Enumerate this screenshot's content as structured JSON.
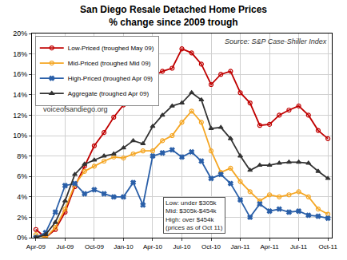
{
  "chart_data": {
    "type": "line",
    "title": "San Diego Resale Detached Home Prices",
    "subtitle": "% change since 2009 trough",
    "categories": [
      "Apr-09",
      null,
      null,
      "Jul-09",
      null,
      null,
      "Oct-09",
      null,
      null,
      "Jan-10",
      null,
      null,
      "Apr-10",
      null,
      null,
      "Jul-10",
      null,
      null,
      "Oct-10",
      null,
      null,
      "Jan-11",
      null,
      null,
      "Apr-11",
      null,
      null,
      "Jul-11",
      null,
      null,
      "Oct-11"
    ],
    "series": [
      {
        "name": "Low-Priced (troughed May 09)",
        "color": "#c00000",
        "marker": "circle-open",
        "values": [
          0.8,
          0,
          0.8,
          2.5,
          5.0,
          7.0,
          9.0,
          10.3,
          11.8,
          13.0,
          14.6,
          14.3,
          15.8,
          16.3,
          16.6,
          18.5,
          18.1,
          17.0,
          15.0,
          16.0,
          16.3,
          14.2,
          13.2,
          11.0,
          11.1,
          12.0,
          12.5,
          12.9,
          12.0,
          10.5,
          9.7
        ]
      },
      {
        "name": "Mid-Priced (troughed Mid 09)",
        "color": "#f5a623",
        "marker": "circle-open",
        "values": [
          0.3,
          0,
          1.0,
          2.8,
          5.2,
          6.5,
          7.0,
          7.5,
          7.9,
          7.8,
          8.2,
          8.5,
          8.5,
          9.5,
          10.0,
          11.3,
          12.4,
          11.3,
          8.5,
          6.4,
          6.8,
          5.5,
          4.5,
          3.6,
          4.2,
          4.0,
          4.2,
          4.5,
          4.0,
          2.8,
          2.3
        ]
      },
      {
        "name": "High-Priced (troughed Apr 09)",
        "color": "#2a5fa8",
        "marker": "x",
        "values": [
          0,
          0.5,
          2.5,
          5.1,
          5.3,
          4.3,
          4.7,
          4.3,
          4.0,
          4.0,
          5.4,
          3.2,
          8.0,
          8.3,
          8.6,
          7.9,
          8.4,
          7.5,
          5.8,
          6.2,
          5.3,
          3.7,
          2.0,
          3.3,
          2.6,
          2.8,
          2.5,
          2.6,
          2.2,
          2.1,
          1.9
        ]
      },
      {
        "name": "Aggregate (troughed Apr 09)",
        "color": "#333333",
        "marker": "triangle-up",
        "values": [
          0,
          0.3,
          1.5,
          3.6,
          6.2,
          7.2,
          7.6,
          8.0,
          8.2,
          8.8,
          9.5,
          9.2,
          10.9,
          12.0,
          12.9,
          13.2,
          14.2,
          13.5,
          10.7,
          10.8,
          9.7,
          8.0,
          6.6,
          7.1,
          7.1,
          7.3,
          7.4,
          7.4,
          7.3,
          6.5,
          5.8
        ]
      }
    ],
    "ylim": [
      0,
      20
    ],
    "yticks": [
      {
        "value": 0,
        "label": "0%"
      },
      {
        "value": 2,
        "label": "2%"
      },
      {
        "value": 4,
        "label": "4%"
      },
      {
        "value": 6,
        "label": "6%"
      },
      {
        "value": 8,
        "label": "8%"
      },
      {
        "value": 10,
        "label": "10%"
      },
      {
        "value": 12,
        "label": "12%"
      },
      {
        "value": 14,
        "label": "14%"
      },
      {
        "value": 16,
        "label": "16%"
      },
      {
        "value": 18,
        "label": "18%"
      },
      {
        "value": 20,
        "label": "20%"
      }
    ],
    "grid": true,
    "legend": "top left",
    "annotations": [
      {
        "text": "Source: S&P Case-Shiller Index"
      },
      {
        "text": "voiceofsandiego.org"
      },
      {
        "text": [
          "Low: under $305k",
          "Mid: $305k-$454k",
          "High: over $454k",
          "(prices as of Oct 11)"
        ]
      }
    ]
  }
}
